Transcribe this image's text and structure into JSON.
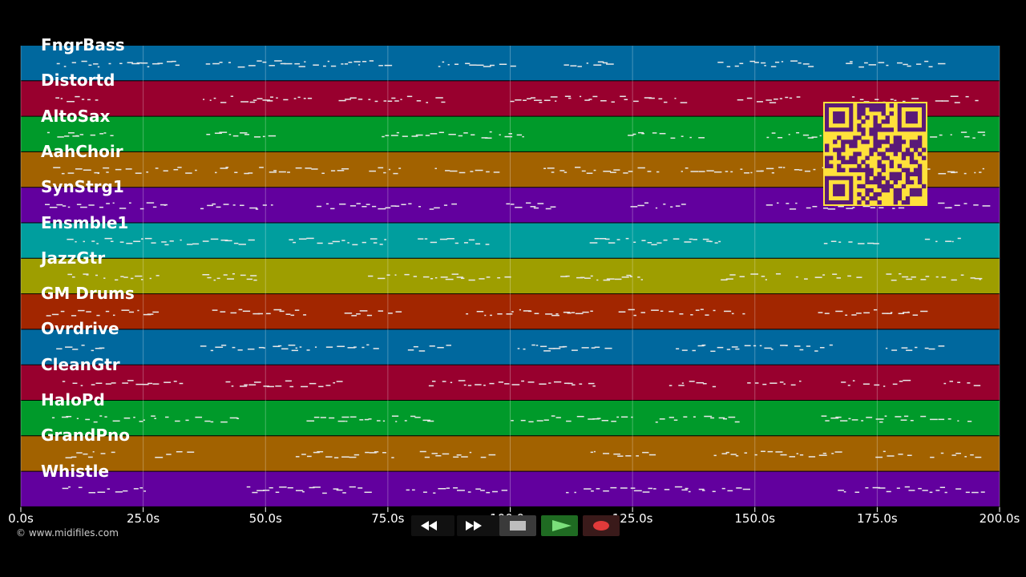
{
  "timeline": {
    "ticks": [
      "0.0s",
      "25.0s",
      "50.0s",
      "75.0s",
      "100.0s",
      "125.0s",
      "150.0s",
      "175.0s",
      "200.0s"
    ]
  },
  "tracks": [
    {
      "name": "FngrBass",
      "color": "#00689e"
    },
    {
      "name": "Distortd",
      "color": "#98002e"
    },
    {
      "name": "AltoSax",
      "color": "#009a2a"
    },
    {
      "name": "AahChoir",
      "color": "#a26200"
    },
    {
      "name": "SynStrg1",
      "color": "#62009e"
    },
    {
      "name": "Ensmble1",
      "color": "#009e9e"
    },
    {
      "name": "JazzGtr",
      "color": "#9e9e00"
    },
    {
      "name": "GM Drums",
      "color": "#a22600"
    },
    {
      "name": "Ovrdrive",
      "color": "#00689e"
    },
    {
      "name": "CleanGtr",
      "color": "#98002e"
    },
    {
      "name": "HaloPd",
      "color": "#009a2a"
    },
    {
      "name": "GrandPno",
      "color": "#a26200"
    },
    {
      "name": "Whistle",
      "color": "#62009e"
    }
  ],
  "copyright": "© www.midifiles.com",
  "transport": {
    "buttons": [
      {
        "name": "rewind-button",
        "icon": "rewind-icon"
      },
      {
        "name": "fast-forward-button",
        "icon": "fast-forward-icon"
      },
      {
        "name": "stop-button",
        "icon": "stop-icon"
      },
      {
        "name": "play-button",
        "icon": "play-icon"
      },
      {
        "name": "record-button",
        "icon": "record-icon"
      }
    ]
  },
  "qr": {
    "color": "#ffe13b",
    "dark": "#5a1a78"
  }
}
